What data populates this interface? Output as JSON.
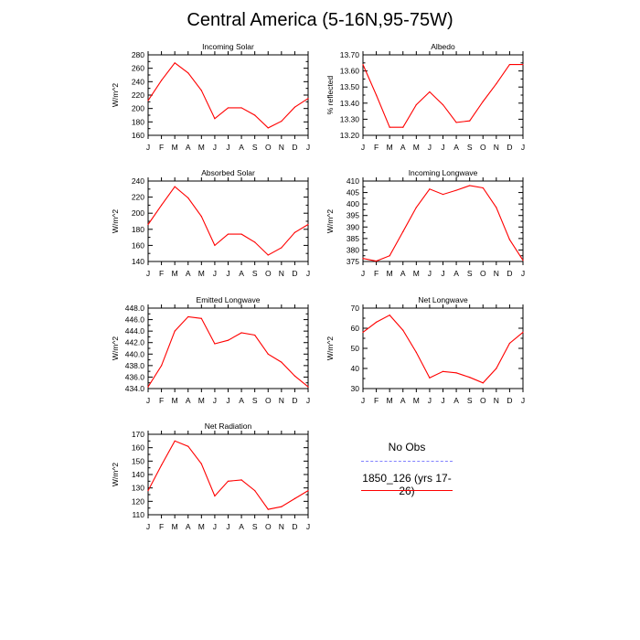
{
  "page_title": "Central America (5-16N,95-75W)",
  "legend": {
    "items": [
      {
        "label": "No Obs",
        "color": "#8080ff",
        "style": "dashed"
      },
      {
        "label": "1850_126 (yrs 17-26)",
        "color": "#ff0000",
        "style": "solid"
      }
    ]
  },
  "chart_data": [
    {
      "type": "line",
      "title": "Incoming Solar",
      "ylabel": "W/m^2",
      "categories": [
        "J",
        "F",
        "M",
        "A",
        "M",
        "J",
        "J",
        "A",
        "S",
        "O",
        "N",
        "D",
        "J"
      ],
      "ylim": [
        160,
        280
      ],
      "yticks": [
        160,
        180,
        200,
        220,
        240,
        260,
        280
      ],
      "ytick_labels": [
        "160",
        "180",
        "200",
        "220",
        "240",
        "260",
        "280"
      ],
      "series": [
        {
          "values": [
            212,
            242,
            268,
            253,
            227,
            185,
            201,
            201,
            190,
            171,
            181,
            202,
            215
          ],
          "color": "#ff0000"
        }
      ]
    },
    {
      "type": "line",
      "title": "Albedo",
      "ylabel": "% reflected",
      "categories": [
        "J",
        "F",
        "M",
        "A",
        "M",
        "J",
        "J",
        "A",
        "S",
        "O",
        "N",
        "D",
        "J"
      ],
      "ylim": [
        13.2,
        13.7
      ],
      "yticks": [
        13.2,
        13.3,
        13.4,
        13.5,
        13.6,
        13.7
      ],
      "ytick_labels": [
        "13.20",
        "13.30",
        "13.40",
        "13.50",
        "13.60",
        "13.70"
      ],
      "series": [
        {
          "values": [
            13.64,
            13.45,
            13.25,
            13.25,
            13.39,
            13.47,
            13.39,
            13.28,
            13.29,
            13.41,
            13.52,
            13.64,
            13.64
          ],
          "color": "#ff0000"
        }
      ]
    },
    {
      "type": "line",
      "title": "Absorbed Solar",
      "ylabel": "W/m^2",
      "categories": [
        "J",
        "F",
        "M",
        "A",
        "M",
        "J",
        "J",
        "A",
        "S",
        "O",
        "N",
        "D",
        "J"
      ],
      "ylim": [
        140,
        240
      ],
      "yticks": [
        140,
        160,
        180,
        200,
        220,
        240
      ],
      "ytick_labels": [
        "140",
        "160",
        "180",
        "200",
        "220",
        "240"
      ],
      "series": [
        {
          "values": [
            186,
            210,
            233,
            219,
            196,
            160,
            174,
            174,
            164,
            148,
            157,
            176,
            186
          ],
          "color": "#ff0000"
        }
      ]
    },
    {
      "type": "line",
      "title": "Incoming Longwave",
      "ylabel": "W/m^2",
      "categories": [
        "J",
        "F",
        "M",
        "A",
        "M",
        "J",
        "J",
        "A",
        "S",
        "O",
        "N",
        "D",
        "J"
      ],
      "ylim": [
        375,
        410
      ],
      "yticks": [
        375,
        380,
        385,
        390,
        395,
        400,
        405,
        410
      ],
      "ytick_labels": [
        "375",
        "380",
        "385",
        "390",
        "395",
        "400",
        "405",
        "410"
      ],
      "series": [
        {
          "values": [
            376.3,
            375.2,
            377.5,
            388,
            398.5,
            406.5,
            404.2,
            406,
            408,
            407,
            398.5,
            384.5,
            375.5
          ],
          "color": "#ff0000"
        }
      ]
    },
    {
      "type": "line",
      "title": "Emitted Longwave",
      "ylabel": "W/m^2",
      "categories": [
        "J",
        "F",
        "M",
        "A",
        "M",
        "J",
        "J",
        "A",
        "S",
        "O",
        "N",
        "D",
        "J"
      ],
      "ylim": [
        434,
        448
      ],
      "yticks": [
        434,
        436,
        438,
        440,
        442,
        444,
        446,
        448
      ],
      "ytick_labels": [
        "434.0",
        "436.0",
        "438.0",
        "440.0",
        "442.0",
        "444.0",
        "446.0",
        "448.0"
      ],
      "series": [
        {
          "values": [
            434.3,
            438,
            444,
            446.5,
            446.2,
            441.8,
            442.4,
            443.7,
            443.3,
            440,
            438.6,
            436.2,
            434.3
          ],
          "color": "#ff0000"
        }
      ]
    },
    {
      "type": "line",
      "title": "Net Longwave",
      "ylabel": "W/m^2",
      "categories": [
        "J",
        "F",
        "M",
        "A",
        "M",
        "J",
        "J",
        "A",
        "S",
        "O",
        "N",
        "D",
        "J"
      ],
      "ylim": [
        30,
        70
      ],
      "yticks": [
        30,
        40,
        50,
        60,
        70
      ],
      "ytick_labels": [
        "30",
        "40",
        "50",
        "60",
        "70"
      ],
      "series": [
        {
          "values": [
            58,
            63,
            66.5,
            59,
            48,
            35.3,
            38.5,
            37.8,
            35.6,
            32.8,
            40,
            52.5,
            58
          ],
          "color": "#ff0000"
        }
      ]
    },
    {
      "type": "line",
      "title": "Net Radiation",
      "ylabel": "W/m^2",
      "categories": [
        "J",
        "F",
        "M",
        "A",
        "M",
        "J",
        "J",
        "A",
        "S",
        "O",
        "N",
        "D",
        "J"
      ],
      "ylim": [
        110,
        170
      ],
      "yticks": [
        110,
        120,
        130,
        140,
        150,
        160,
        170
      ],
      "ytick_labels": [
        "110",
        "120",
        "130",
        "140",
        "150",
        "160",
        "170"
      ],
      "series": [
        {
          "values": [
            128,
            147,
            165,
            161,
            148,
            124,
            135,
            136,
            128,
            114,
            116,
            122,
            128
          ],
          "color": "#ff0000"
        }
      ]
    }
  ]
}
